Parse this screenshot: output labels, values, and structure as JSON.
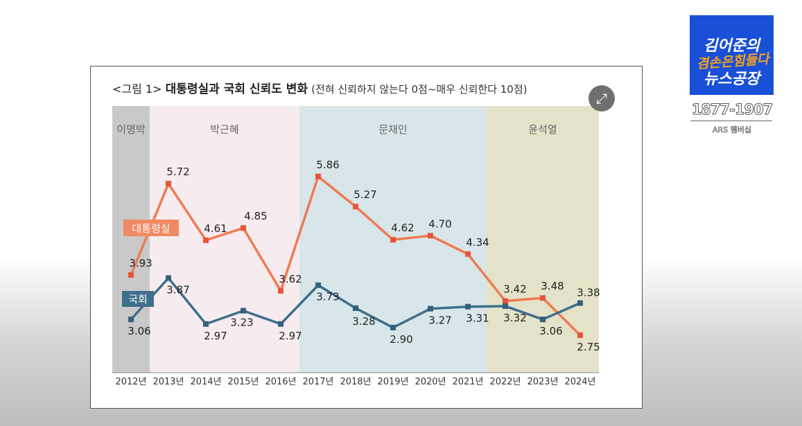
{
  "title": {
    "prefix": "<그림 1>",
    "main": "대통령실과 국회 신뢰도 변화",
    "sub": "(전혀 신뢰하지 않는다 0점~매우 신뢰한다 10점)"
  },
  "expand_icon": "expand-arrows-icon",
  "logo": {
    "line1": "김어준의",
    "line2": "겸손은힘들다",
    "line3": "뉴스공장",
    "phone": "1877-1907",
    "ars": "ARS 멤버십"
  },
  "chart_data": {
    "type": "line",
    "title": "대통령실과 국회 신뢰도 변화",
    "categories": [
      "2012년",
      "2013년",
      "2014년",
      "2015년",
      "2016년",
      "2017년",
      "2018년",
      "2019년",
      "2020년",
      "2021년",
      "2022년",
      "2023년",
      "2024년"
    ],
    "eras": [
      {
        "label": "이명박",
        "from": 0,
        "to": 0,
        "color": "#c9c9c9"
      },
      {
        "label": "박근혜",
        "from": 1,
        "to": 4,
        "color": "#f6ebee"
      },
      {
        "label": "문재인",
        "from": 5,
        "to": 9,
        "color": "#d8e6ea"
      },
      {
        "label": "윤석열",
        "from": 10,
        "to": 12,
        "color": "#e4e2c8"
      }
    ],
    "series": [
      {
        "name": "대통령실",
        "color": "#f07a52",
        "marker": "#e6553a",
        "values": [
          3.93,
          5.72,
          4.61,
          4.85,
          3.62,
          5.86,
          5.27,
          4.62,
          4.7,
          4.34,
          3.42,
          3.48,
          2.75
        ],
        "labels": [
          "3.93",
          "5.72",
          "4.61",
          "4.85",
          "3.62",
          "5.86",
          "5.27",
          "4.62",
          "4.70",
          "4.34",
          "3.42",
          "3.48",
          "2.75"
        ]
      },
      {
        "name": "국회",
        "color": "#3e6f8c",
        "marker": "#35607c",
        "values": [
          3.06,
          3.87,
          2.97,
          3.23,
          2.97,
          3.73,
          3.28,
          2.9,
          3.27,
          3.31,
          3.32,
          3.06,
          3.38
        ],
        "labels": [
          "3.06",
          "3.87",
          "2.97",
          "3.23",
          "2.97",
          "3.73",
          "3.28",
          "2.90",
          "3.27",
          "3.31",
          "3.32",
          "3.06",
          "3.38"
        ]
      }
    ],
    "grid": false,
    "legend": "inline labels"
  }
}
